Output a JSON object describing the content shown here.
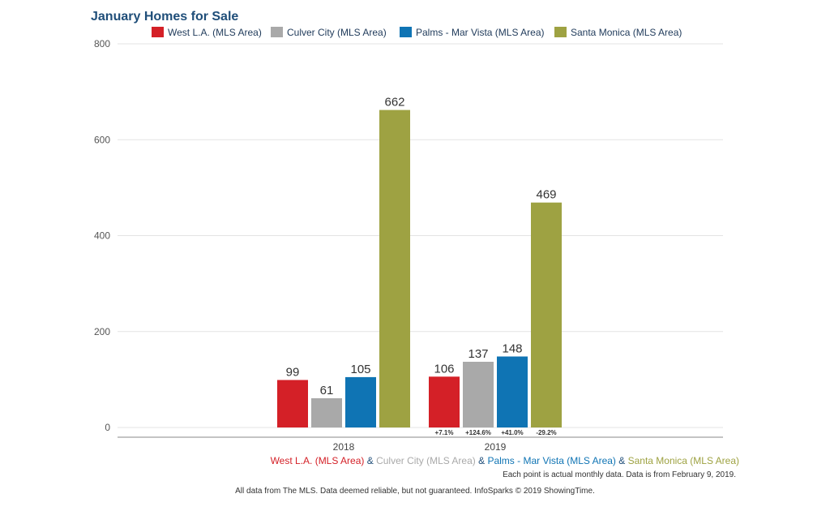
{
  "chart_data": {
    "type": "bar",
    "title": "January Homes for Sale",
    "categories": [
      "2018",
      "2019"
    ],
    "series": [
      {
        "name": "West L.A. (MLS Area)",
        "color": "#d42027",
        "values": [
          99,
          106
        ],
        "changes": [
          "",
          "+7.1%"
        ]
      },
      {
        "name": "Culver City (MLS Area)",
        "color": "#a9a9a9",
        "values": [
          61,
          137
        ],
        "changes": [
          "",
          "+124.6%"
        ]
      },
      {
        "name": "Palms - Mar Vista (MLS Area)",
        "color": "#0f74b4",
        "values": [
          105,
          148
        ],
        "changes": [
          "",
          "+41.0%"
        ]
      },
      {
        "name": "Santa Monica (MLS Area)",
        "color": "#9ea242",
        "values": [
          662,
          469
        ],
        "changes": [
          "",
          "-29.2%"
        ]
      }
    ],
    "yticks": [
      "0",
      "200",
      "400",
      "600",
      "800"
    ],
    "ylim": [
      0,
      800
    ],
    "grid": true,
    "legend": "top"
  },
  "footer": {
    "connector": "&",
    "connector_color": "#1f4e79",
    "note": "Each point is actual monthly data. Data is from February 9, 2019.",
    "source": "All data from The MLS. Data deemed reliable, but not guaranteed. InfoSparks © 2019 ShowingTime."
  }
}
